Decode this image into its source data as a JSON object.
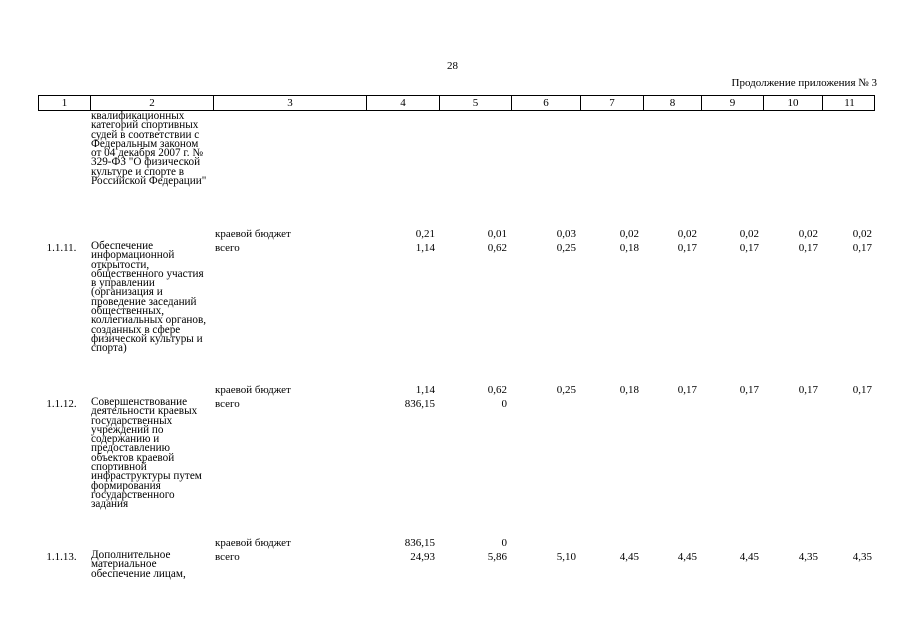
{
  "page_number": "28",
  "continuation": "Продолжение приложения № 3",
  "column_headers": [
    "1",
    "2",
    "3",
    "4",
    "5",
    "6",
    "7",
    "8",
    "9",
    "10",
    "11"
  ],
  "rows": [
    {
      "code": "",
      "name": "квалификационных категорий спортивных судей в соответствии с Федеральным законом от 04 декабря 2007 г. № 329-ФЗ \"О физической культуре и спорте в Российской Федерации\"",
      "source": "",
      "values": [
        "",
        "",
        "",
        "",
        "",
        "",
        "",
        ""
      ]
    },
    {
      "code": "",
      "name": "",
      "source": "краевой бюджет",
      "values": [
        "0,21",
        "0,01",
        "0,03",
        "0,02",
        "0,02",
        "0,02",
        "0,02",
        "0,02"
      ]
    },
    {
      "code": "1.1.11.",
      "name": "Обеспечение информационной открытости, общественного участия в управлении (организация и проведение заседаний общественных, коллегиальных органов, созданных в сфере физической культуры и спорта)",
      "source": "всего",
      "values": [
        "1,14",
        "0,62",
        "0,25",
        "0,18",
        "0,17",
        "0,17",
        "0,17",
        "0,17"
      ]
    },
    {
      "code": "",
      "name": "",
      "source": "краевой бюджет",
      "values": [
        "1,14",
        "0,62",
        "0,25",
        "0,18",
        "0,17",
        "0,17",
        "0,17",
        "0,17"
      ]
    },
    {
      "code": "1.1.12.",
      "name": "Совершенствование деятельности краевых государственных учреждений по содержанию и предоставлению объектов краевой спортивной инфраструктуры путем формирования государственного задания",
      "source": "всего",
      "values": [
        "836,15",
        "0",
        "",
        "",
        "",
        "",
        "",
        ""
      ]
    },
    {
      "code": "",
      "name": "",
      "source": "краевой бюджет",
      "values": [
        "836,15",
        "0",
        "",
        "",
        "",
        "",
        "",
        ""
      ]
    },
    {
      "code": "1.1.13.",
      "name": "Дополнительное материальное обеспечение лицам,",
      "source": "всего",
      "values": [
        "24,93",
        "5,86",
        "5,10",
        "4,45",
        "4,45",
        "4,45",
        "4,35",
        "4,35"
      ]
    }
  ]
}
